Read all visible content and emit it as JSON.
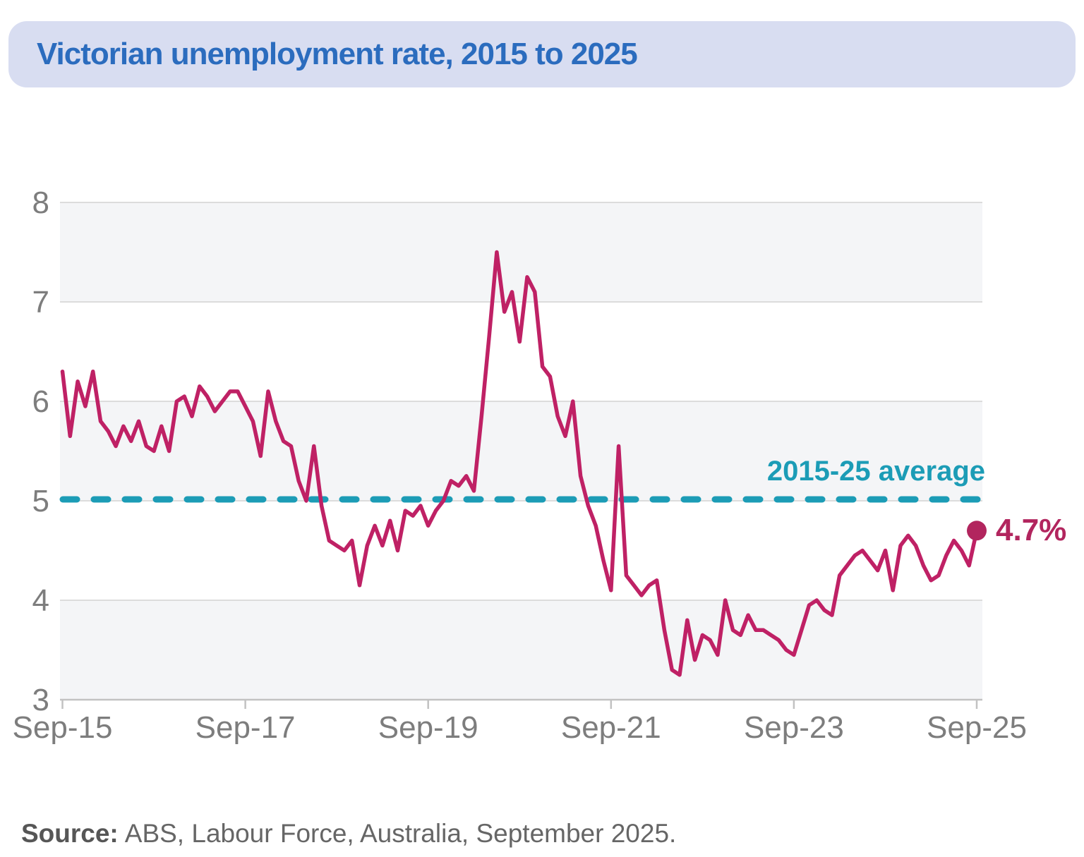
{
  "title": "Victorian unemployment rate, 2015 to 2025",
  "annotations": {
    "average_label": "2015-25 average",
    "last_value_label": "4.7%"
  },
  "source": {
    "label": "Source:",
    "text": "ABS, Labour Force, Australia, September 2025."
  },
  "colors": {
    "title_blue": "#2b6cbe",
    "banner_bg": "#d8ddf1",
    "band_bg": "#f4f5f7",
    "grid": "#dcdcdc",
    "axis_line": "#c2c2c2",
    "axis_text": "#7d7d7d",
    "teal": "#1c9cb6",
    "line": "#bf2165",
    "marker": "#b2255e"
  },
  "chart_data": {
    "type": "line",
    "title": "Victorian unemployment rate, 2015 to 2025",
    "xlabel": "",
    "ylabel": "",
    "unit": "%",
    "frequency": "monthly",
    "x_start": "Sep-2015",
    "x_end": "Sep-2025",
    "x_tick_labels": [
      "Sep-15",
      "Sep-17",
      "Sep-19",
      "Sep-21",
      "Sep-23",
      "Sep-25"
    ],
    "y_ticks": [
      3,
      4,
      5,
      6,
      7,
      8
    ],
    "ylim": [
      3,
      8
    ],
    "grid": true,
    "shaded_bands": [
      [
        7,
        8
      ],
      [
        5,
        6
      ],
      [
        3,
        4
      ]
    ],
    "average_line": 5.0,
    "last_value": 4.7,
    "values": [
      6.3,
      5.65,
      6.2,
      5.95,
      6.3,
      5.8,
      5.7,
      5.55,
      5.75,
      5.6,
      5.8,
      5.55,
      5.5,
      5.75,
      5.5,
      6.0,
      6.05,
      5.85,
      6.15,
      6.05,
      5.9,
      6.0,
      6.1,
      6.1,
      5.95,
      5.8,
      5.45,
      6.1,
      5.8,
      5.6,
      5.55,
      5.2,
      5.0,
      5.55,
      4.95,
      4.6,
      4.55,
      4.5,
      4.6,
      4.15,
      4.55,
      4.75,
      4.55,
      4.8,
      4.5,
      4.9,
      4.85,
      4.95,
      4.75,
      4.9,
      5.0,
      5.2,
      5.15,
      5.25,
      5.1,
      5.85,
      6.65,
      7.5,
      6.9,
      7.1,
      6.6,
      7.25,
      7.1,
      6.35,
      6.25,
      5.85,
      5.65,
      6.0,
      5.25,
      4.95,
      4.75,
      4.4,
      4.1,
      5.55,
      4.25,
      4.15,
      4.05,
      4.15,
      4.2,
      3.7,
      3.3,
      3.25,
      3.8,
      3.4,
      3.65,
      3.6,
      3.45,
      4.0,
      3.7,
      3.65,
      3.85,
      3.7,
      3.7,
      3.65,
      3.6,
      3.5,
      3.45,
      3.7,
      3.95,
      4.0,
      3.9,
      3.85,
      4.25,
      4.35,
      4.45,
      4.5,
      4.4,
      4.3,
      4.5,
      4.1,
      4.55,
      4.65,
      4.55,
      4.35,
      4.2,
      4.25,
      4.45,
      4.6,
      4.5,
      4.35,
      4.7
    ]
  }
}
